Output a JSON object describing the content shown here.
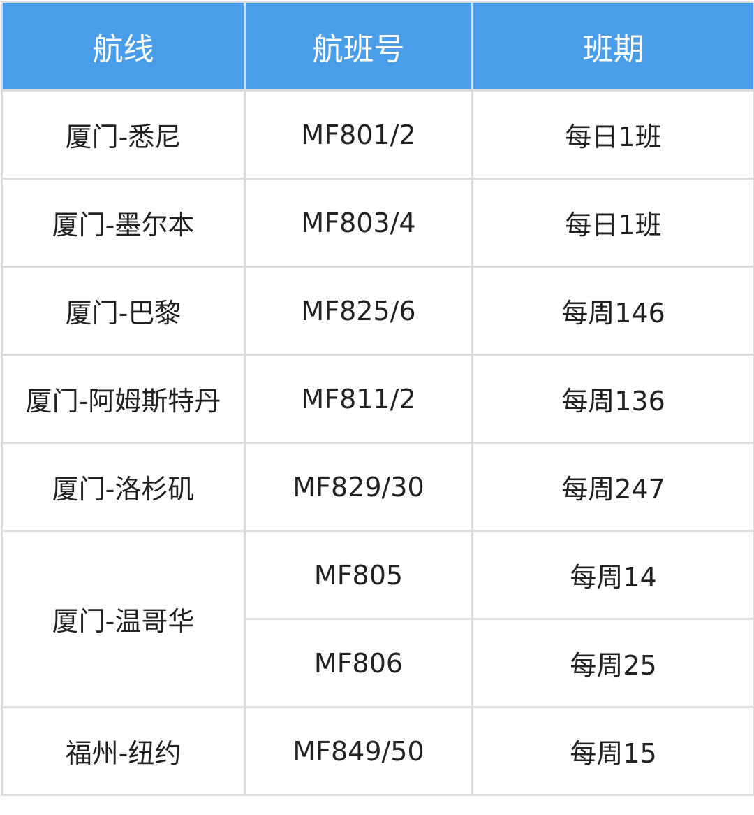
{
  "colors": {
    "header_bg": "#4a9de8",
    "header_text": "#ffffff",
    "border": "#dcdcdc"
  },
  "headers": [
    "航线",
    "航班号",
    "班期"
  ],
  "rows": [
    {
      "route": "厦门-悉尼",
      "flight": "MF801/2",
      "schedule": "每日1班"
    },
    {
      "route": "厦门-墨尔本",
      "flight": "MF803/4",
      "schedule": "每日1班"
    },
    {
      "route": "厦门-巴黎",
      "flight": "MF825/6",
      "schedule": "每周146"
    },
    {
      "route": "厦门-阿姆斯特丹",
      "flight": "MF811/2",
      "schedule": "每周136"
    },
    {
      "route": "厦门-洛杉矶",
      "flight": "MF829/30",
      "schedule": "每周247"
    },
    {
      "route": "厦门-温哥华",
      "flight": "MF805",
      "schedule": "每周14"
    },
    {
      "route": "",
      "flight": "MF806",
      "schedule": "每周25"
    },
    {
      "route": "福州-纽约",
      "flight": "MF849/50",
      "schedule": "每周15"
    }
  ]
}
